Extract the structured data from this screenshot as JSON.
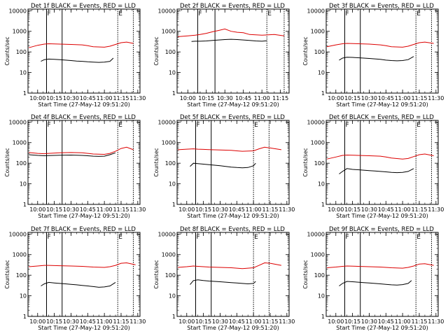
{
  "chart_data": [
    {
      "type": "line",
      "title": "Det 1f BLACK = Events, RED = LLD",
      "xlabel": "Start Time (27-May-12 09:51:20)",
      "ylabel": "Counts/sec",
      "xlim": [
        "09:51:20",
        "11:32:00"
      ],
      "ylim": [
        1,
        12000
      ],
      "yscale": "log",
      "x_ticks": [
        "10:00",
        "10:15",
        "10:30",
        "10:45",
        "11:00",
        "11:15",
        "11:30"
      ],
      "y_ticks": [
        "1",
        "10",
        "100",
        "1000",
        "10000"
      ],
      "markers": [
        "10:08",
        "10:22",
        "11:12",
        "11:26"
      ],
      "marker_labels": [
        "F",
        "E"
      ],
      "series": [
        {
          "color": "#000000",
          "x": [
            "10:03",
            "10:06",
            "10:10",
            "10:15",
            "10:20",
            "10:25",
            "10:30",
            "10:35",
            "10:40",
            "10:45",
            "10:50",
            "10:55",
            "11:00",
            "11:05",
            "11:08"
          ],
          "values": [
            35,
            42,
            45,
            44,
            42,
            40,
            38,
            36,
            35,
            33,
            32,
            31,
            32,
            35,
            50
          ]
        },
        {
          "color": "#dd0000",
          "x": [
            "09:52",
            "10:00",
            "10:06",
            "10:10",
            "10:20",
            "10:30",
            "10:40",
            "10:45",
            "10:50",
            "11:00",
            "11:05",
            "11:10",
            "11:15",
            "11:20",
            "11:26"
          ],
          "values": [
            160,
            210,
            240,
            250,
            240,
            230,
            220,
            200,
            180,
            170,
            190,
            230,
            280,
            300,
            260
          ]
        }
      ]
    },
    {
      "type": "line",
      "title": "Det 2f BLACK = Events, RED = LLD",
      "xlabel": "Start Time (27-May-12 09:51:20)",
      "ylabel": "Counts/sec",
      "xlim": [
        "09:51:20",
        "11:22:00"
      ],
      "ylim": [
        1,
        12000
      ],
      "yscale": "log",
      "x_ticks": [
        "10:00",
        "10:15",
        "10:30",
        "10:45",
        "11:00",
        "11:15"
      ],
      "y_ticks": [
        "1",
        "10",
        "100",
        "1000",
        "10000"
      ],
      "markers": [
        "10:08",
        "10:22",
        "11:04",
        "11:18"
      ],
      "marker_labels": [
        "F",
        "E"
      ],
      "series": [
        {
          "color": "#000000",
          "x": [
            "10:03",
            "10:06",
            "10:10",
            "10:15",
            "10:20",
            "10:25",
            "10:30",
            "10:35",
            "10:40",
            "10:45",
            "10:50",
            "10:55",
            "11:00",
            "11:04"
          ],
          "values": [
            320,
            330,
            330,
            340,
            360,
            380,
            400,
            410,
            400,
            380,
            360,
            340,
            330,
            350
          ]
        },
        {
          "color": "#dd0000",
          "x": [
            "09:52",
            "10:00",
            "10:06",
            "10:10",
            "10:15",
            "10:20",
            "10:25",
            "10:30",
            "10:35",
            "10:40",
            "10:45",
            "10:50",
            "11:00",
            "11:10",
            "11:18"
          ],
          "values": [
            550,
            600,
            650,
            700,
            800,
            950,
            1100,
            1300,
            1000,
            900,
            850,
            700,
            650,
            700,
            600
          ]
        }
      ]
    },
    {
      "type": "line",
      "title": "Det 3f BLACK = Events, RED = LLD",
      "xlabel": "Start Time (27-May-12 09:51:20)",
      "ylabel": "Counts/sec",
      "xlim": [
        "09:51:20",
        "11:32:00"
      ],
      "ylim": [
        1,
        12000
      ],
      "yscale": "log",
      "x_ticks": [
        "10:00",
        "10:15",
        "10:30",
        "10:45",
        "11:00",
        "11:15",
        "11:30"
      ],
      "y_ticks": [
        "1",
        "10",
        "100",
        "1000",
        "10000"
      ],
      "markers": [
        "10:08",
        "10:22",
        "11:12",
        "11:26"
      ],
      "marker_labels": [
        "F",
        "E"
      ],
      "series": [
        {
          "color": "#000000",
          "x": [
            "10:03",
            "10:06",
            "10:10",
            "10:15",
            "10:20",
            "10:25",
            "10:30",
            "10:35",
            "10:40",
            "10:45",
            "10:50",
            "10:55",
            "11:00",
            "11:05",
            "11:10"
          ],
          "values": [
            40,
            50,
            55,
            54,
            52,
            50,
            48,
            46,
            44,
            40,
            38,
            37,
            38,
            42,
            60
          ]
        },
        {
          "color": "#dd0000",
          "x": [
            "09:52",
            "10:00",
            "10:06",
            "10:10",
            "10:20",
            "10:30",
            "10:40",
            "10:45",
            "10:50",
            "11:00",
            "11:05",
            "11:10",
            "11:15",
            "11:20",
            "11:28"
          ],
          "values": [
            180,
            220,
            250,
            260,
            250,
            240,
            220,
            200,
            180,
            170,
            190,
            230,
            280,
            300,
            260
          ]
        }
      ]
    },
    {
      "type": "line",
      "title": "Det 4f BLACK = Events, RED = LLD",
      "xlabel": "Start Time (27-May-12 09:51:20)",
      "ylabel": "Counts/sec",
      "xlim": [
        "09:51:20",
        "11:32:00"
      ],
      "ylim": [
        1,
        12000
      ],
      "yscale": "log",
      "x_ticks": [
        "10:00",
        "10:15",
        "10:30",
        "10:45",
        "11:00",
        "11:15",
        "11:30"
      ],
      "y_ticks": [
        "1",
        "10",
        "100",
        "1000",
        "10000"
      ],
      "markers": [
        "10:08",
        "10:22",
        "11:12",
        "11:26"
      ],
      "marker_labels": [
        "F",
        "E"
      ],
      "series": [
        {
          "color": "#000000",
          "x": [
            "09:52",
            "10:00",
            "10:06",
            "10:10",
            "10:15",
            "10:20",
            "10:30",
            "10:40",
            "10:45",
            "10:50",
            "10:55",
            "11:00",
            "11:05",
            "11:10"
          ],
          "values": [
            260,
            240,
            230,
            235,
            240,
            245,
            250,
            240,
            230,
            220,
            215,
            220,
            260,
            320
          ]
        },
        {
          "color": "#dd0000",
          "x": [
            "09:52",
            "10:00",
            "10:06",
            "10:10",
            "10:20",
            "10:30",
            "10:40",
            "10:45",
            "10:50",
            "11:00",
            "11:05",
            "11:10",
            "11:15",
            "11:20",
            "11:26"
          ],
          "values": [
            330,
            300,
            290,
            300,
            320,
            330,
            320,
            300,
            280,
            270,
            300,
            380,
            520,
            600,
            450
          ]
        }
      ]
    },
    {
      "type": "line",
      "title": "Det 5f BLACK = Events, RED = LLD",
      "xlabel": "Start Time (27-May-12 09:51:20)",
      "ylabel": "Counts/sec",
      "xlim": [
        "09:51:20",
        "11:32:00"
      ],
      "ylim": [
        1,
        12000
      ],
      "yscale": "log",
      "x_ticks": [
        "10:00",
        "10:15",
        "10:30",
        "10:45",
        "11:00",
        "11:15",
        "11:30"
      ],
      "y_ticks": [
        "1",
        "10",
        "100",
        "1000",
        "10000"
      ],
      "markers": [
        "10:08",
        "10:22",
        "11:00",
        "11:14"
      ],
      "marker_labels": [
        "F",
        "E"
      ],
      "series": [
        {
          "color": "#000000",
          "x": [
            "10:03",
            "10:06",
            "10:10",
            "10:15",
            "10:20",
            "10:25",
            "10:30",
            "10:35",
            "10:40",
            "10:45",
            "10:50",
            "10:55",
            "11:00",
            "11:02"
          ],
          "values": [
            70,
            100,
            95,
            90,
            85,
            80,
            75,
            70,
            65,
            62,
            60,
            62,
            75,
            100
          ]
        },
        {
          "color": "#dd0000",
          "x": [
            "09:52",
            "10:00",
            "10:06",
            "10:10",
            "10:15",
            "10:20",
            "10:30",
            "10:40",
            "10:45",
            "10:50",
            "11:00",
            "11:05",
            "11:10",
            "11:15",
            "11:25"
          ],
          "values": [
            450,
            480,
            500,
            480,
            470,
            460,
            440,
            420,
            400,
            380,
            400,
            500,
            600,
            550,
            450
          ]
        }
      ]
    },
    {
      "type": "line",
      "title": "Det 6f BLACK = Events, RED = LLD",
      "xlabel": "Start Time (27-May-12 09:51:20)",
      "ylabel": "Counts/sec",
      "xlim": [
        "09:51:20",
        "11:32:00"
      ],
      "ylim": [
        1,
        12000
      ],
      "yscale": "log",
      "x_ticks": [
        "10:00",
        "10:15",
        "10:30",
        "10:45",
        "11:00",
        "11:15",
        "11:30"
      ],
      "y_ticks": [
        "1",
        "10",
        "100",
        "1000",
        "10000"
      ],
      "markers": [
        "10:08",
        "10:22",
        "11:12",
        "11:26"
      ],
      "marker_labels": [
        "F",
        "E"
      ],
      "series": [
        {
          "color": "#000000",
          "x": [
            "10:03",
            "10:06",
            "10:10",
            "10:15",
            "10:20",
            "10:25",
            "10:30",
            "10:35",
            "10:40",
            "10:45",
            "10:50",
            "10:55",
            "11:00",
            "11:05",
            "11:10"
          ],
          "values": [
            30,
            40,
            55,
            50,
            48,
            46,
            44,
            42,
            40,
            38,
            36,
            35,
            36,
            40,
            55
          ]
        },
        {
          "color": "#dd0000",
          "x": [
            "09:52",
            "10:00",
            "10:06",
            "10:10",
            "10:20",
            "10:30",
            "10:40",
            "10:45",
            "10:50",
            "11:00",
            "11:05",
            "11:10",
            "11:15",
            "11:20",
            "11:28"
          ],
          "values": [
            160,
            200,
            240,
            250,
            240,
            230,
            220,
            200,
            180,
            160,
            170,
            210,
            260,
            280,
            230
          ]
        }
      ]
    },
    {
      "type": "line",
      "title": "Det 7f BLACK = Events, RED = LLD",
      "xlabel": "Start Time (27-May-12 09:51:20)",
      "ylabel": "Counts/sec",
      "xlim": [
        "09:51:20",
        "11:32:00"
      ],
      "ylim": [
        1,
        12000
      ],
      "yscale": "log",
      "x_ticks": [
        "10:00",
        "10:15",
        "10:30",
        "10:45",
        "11:00",
        "11:15",
        "11:30"
      ],
      "y_ticks": [
        "1",
        "10",
        "100",
        "1000",
        "10000"
      ],
      "markers": [
        "10:08",
        "10:22",
        "11:12",
        "11:26"
      ],
      "marker_labels": [
        "F",
        "E"
      ],
      "series": [
        {
          "color": "#000000",
          "x": [
            "10:03",
            "10:06",
            "10:10",
            "10:15",
            "10:20",
            "10:25",
            "10:30",
            "10:35",
            "10:40",
            "10:45",
            "10:50",
            "10:55",
            "11:00",
            "11:05",
            "11:10"
          ],
          "values": [
            30,
            38,
            45,
            42,
            40,
            38,
            36,
            34,
            32,
            30,
            28,
            26,
            27,
            30,
            45
          ]
        },
        {
          "color": "#dd0000",
          "x": [
            "09:52",
            "10:00",
            "10:06",
            "10:10",
            "10:20",
            "10:30",
            "10:40",
            "10:45",
            "10:50",
            "11:00",
            "11:05",
            "11:10",
            "11:15",
            "11:20",
            "11:28"
          ],
          "values": [
            260,
            280,
            300,
            300,
            290,
            280,
            270,
            260,
            250,
            240,
            260,
            300,
            380,
            400,
            320
          ]
        }
      ]
    },
    {
      "type": "line",
      "title": "Det 8f BLACK = Events, RED = LLD",
      "xlabel": "Start Time (27-May-12 09:51:20)",
      "ylabel": "Counts/sec",
      "xlim": [
        "09:51:20",
        "11:32:00"
      ],
      "ylim": [
        1,
        12000
      ],
      "yscale": "log",
      "x_ticks": [
        "10:00",
        "10:15",
        "10:30",
        "10:45",
        "11:00",
        "11:15",
        "11:30"
      ],
      "y_ticks": [
        "1",
        "10",
        "100",
        "1000",
        "10000"
      ],
      "markers": [
        "10:08",
        "10:22",
        "11:00",
        "11:14"
      ],
      "marker_labels": [
        "F",
        "E"
      ],
      "series": [
        {
          "color": "#000000",
          "x": [
            "10:03",
            "10:06",
            "10:10",
            "10:15",
            "10:20",
            "10:25",
            "10:30",
            "10:35",
            "10:40",
            "10:45",
            "10:50",
            "10:55",
            "11:00",
            "11:02"
          ],
          "values": [
            35,
            55,
            60,
            55,
            52,
            50,
            48,
            46,
            44,
            42,
            40,
            38,
            40,
            50
          ]
        },
        {
          "color": "#dd0000",
          "x": [
            "09:52",
            "10:00",
            "10:06",
            "10:10",
            "10:15",
            "10:20",
            "10:30",
            "10:40",
            "10:45",
            "10:50",
            "11:00",
            "11:05",
            "11:10",
            "11:15",
            "11:25"
          ],
          "values": [
            240,
            260,
            280,
            270,
            260,
            250,
            240,
            230,
            220,
            210,
            230,
            300,
            400,
            380,
            300
          ]
        }
      ]
    },
    {
      "type": "line",
      "title": "Det 9f BLACK = Events, RED = LLD",
      "xlabel": "Start Time (27-May-12 09:51:20)",
      "ylabel": "Counts/sec",
      "xlim": [
        "09:51:20",
        "11:32:00"
      ],
      "ylim": [
        1,
        12000
      ],
      "yscale": "log",
      "x_ticks": [
        "10:00",
        "10:15",
        "10:30",
        "10:45",
        "11:00",
        "11:15",
        "11:30"
      ],
      "y_ticks": [
        "1",
        "10",
        "100",
        "1000",
        "10000"
      ],
      "markers": [
        "10:08",
        "10:22",
        "11:12",
        "11:26"
      ],
      "marker_labels": [
        "F",
        "E"
      ],
      "series": [
        {
          "color": "#000000",
          "x": [
            "10:03",
            "10:06",
            "10:10",
            "10:15",
            "10:20",
            "10:25",
            "10:30",
            "10:35",
            "10:40",
            "10:45",
            "10:50",
            "10:55",
            "11:00",
            "11:05",
            "11:08"
          ],
          "values": [
            30,
            40,
            50,
            48,
            46,
            44,
            42,
            40,
            38,
            36,
            34,
            33,
            35,
            40,
            55
          ]
        },
        {
          "color": "#dd0000",
          "x": [
            "09:52",
            "10:00",
            "10:06",
            "10:10",
            "10:20",
            "10:30",
            "10:40",
            "10:45",
            "10:50",
            "11:00",
            "11:05",
            "11:10",
            "11:15",
            "11:20",
            "11:28"
          ],
          "values": [
            230,
            250,
            270,
            280,
            270,
            260,
            250,
            240,
            230,
            220,
            240,
            280,
            350,
            360,
            300
          ]
        }
      ]
    }
  ]
}
